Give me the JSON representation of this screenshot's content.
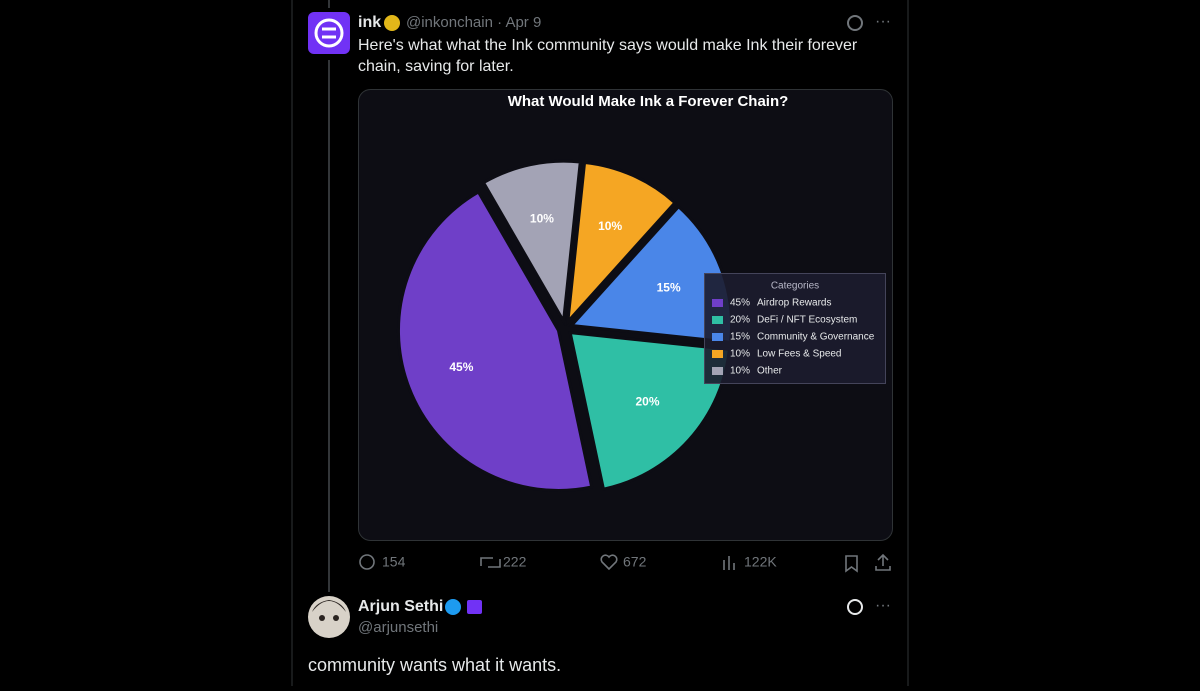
{
  "tweet": {
    "name": "ink",
    "handle": "@inkonchain · Apr 9",
    "text_lines": [
      "Here's what what the Ink community says would make Ink their forever",
      "chain, saving for later."
    ],
    "replies": "154",
    "reposts": "222",
    "likes": "672",
    "views": "122K"
  },
  "chart_data": {
    "type": "pie",
    "title": "What Would Make Ink a Forever Chain?",
    "legend_title": "Categories",
    "categories": [
      "Airdrop Rewards",
      "DeFi / NFT Ecosystem",
      "Community & Governance",
      "Low Fees & Speed",
      "Other"
    ],
    "values": [
      45,
      20,
      15,
      10,
      10
    ],
    "value_labels": [
      "45%",
      "20%",
      "15%",
      "10%",
      "10%"
    ],
    "colors": [
      "#6f3fc8",
      "#2fbfa5",
      "#4a86e8",
      "#f5a623",
      "#a3a3b5"
    ],
    "legend": "right"
  },
  "reply": {
    "name": "Arjun Sethi",
    "handle": "@arjunsethi",
    "text": "community wants what it wants."
  }
}
